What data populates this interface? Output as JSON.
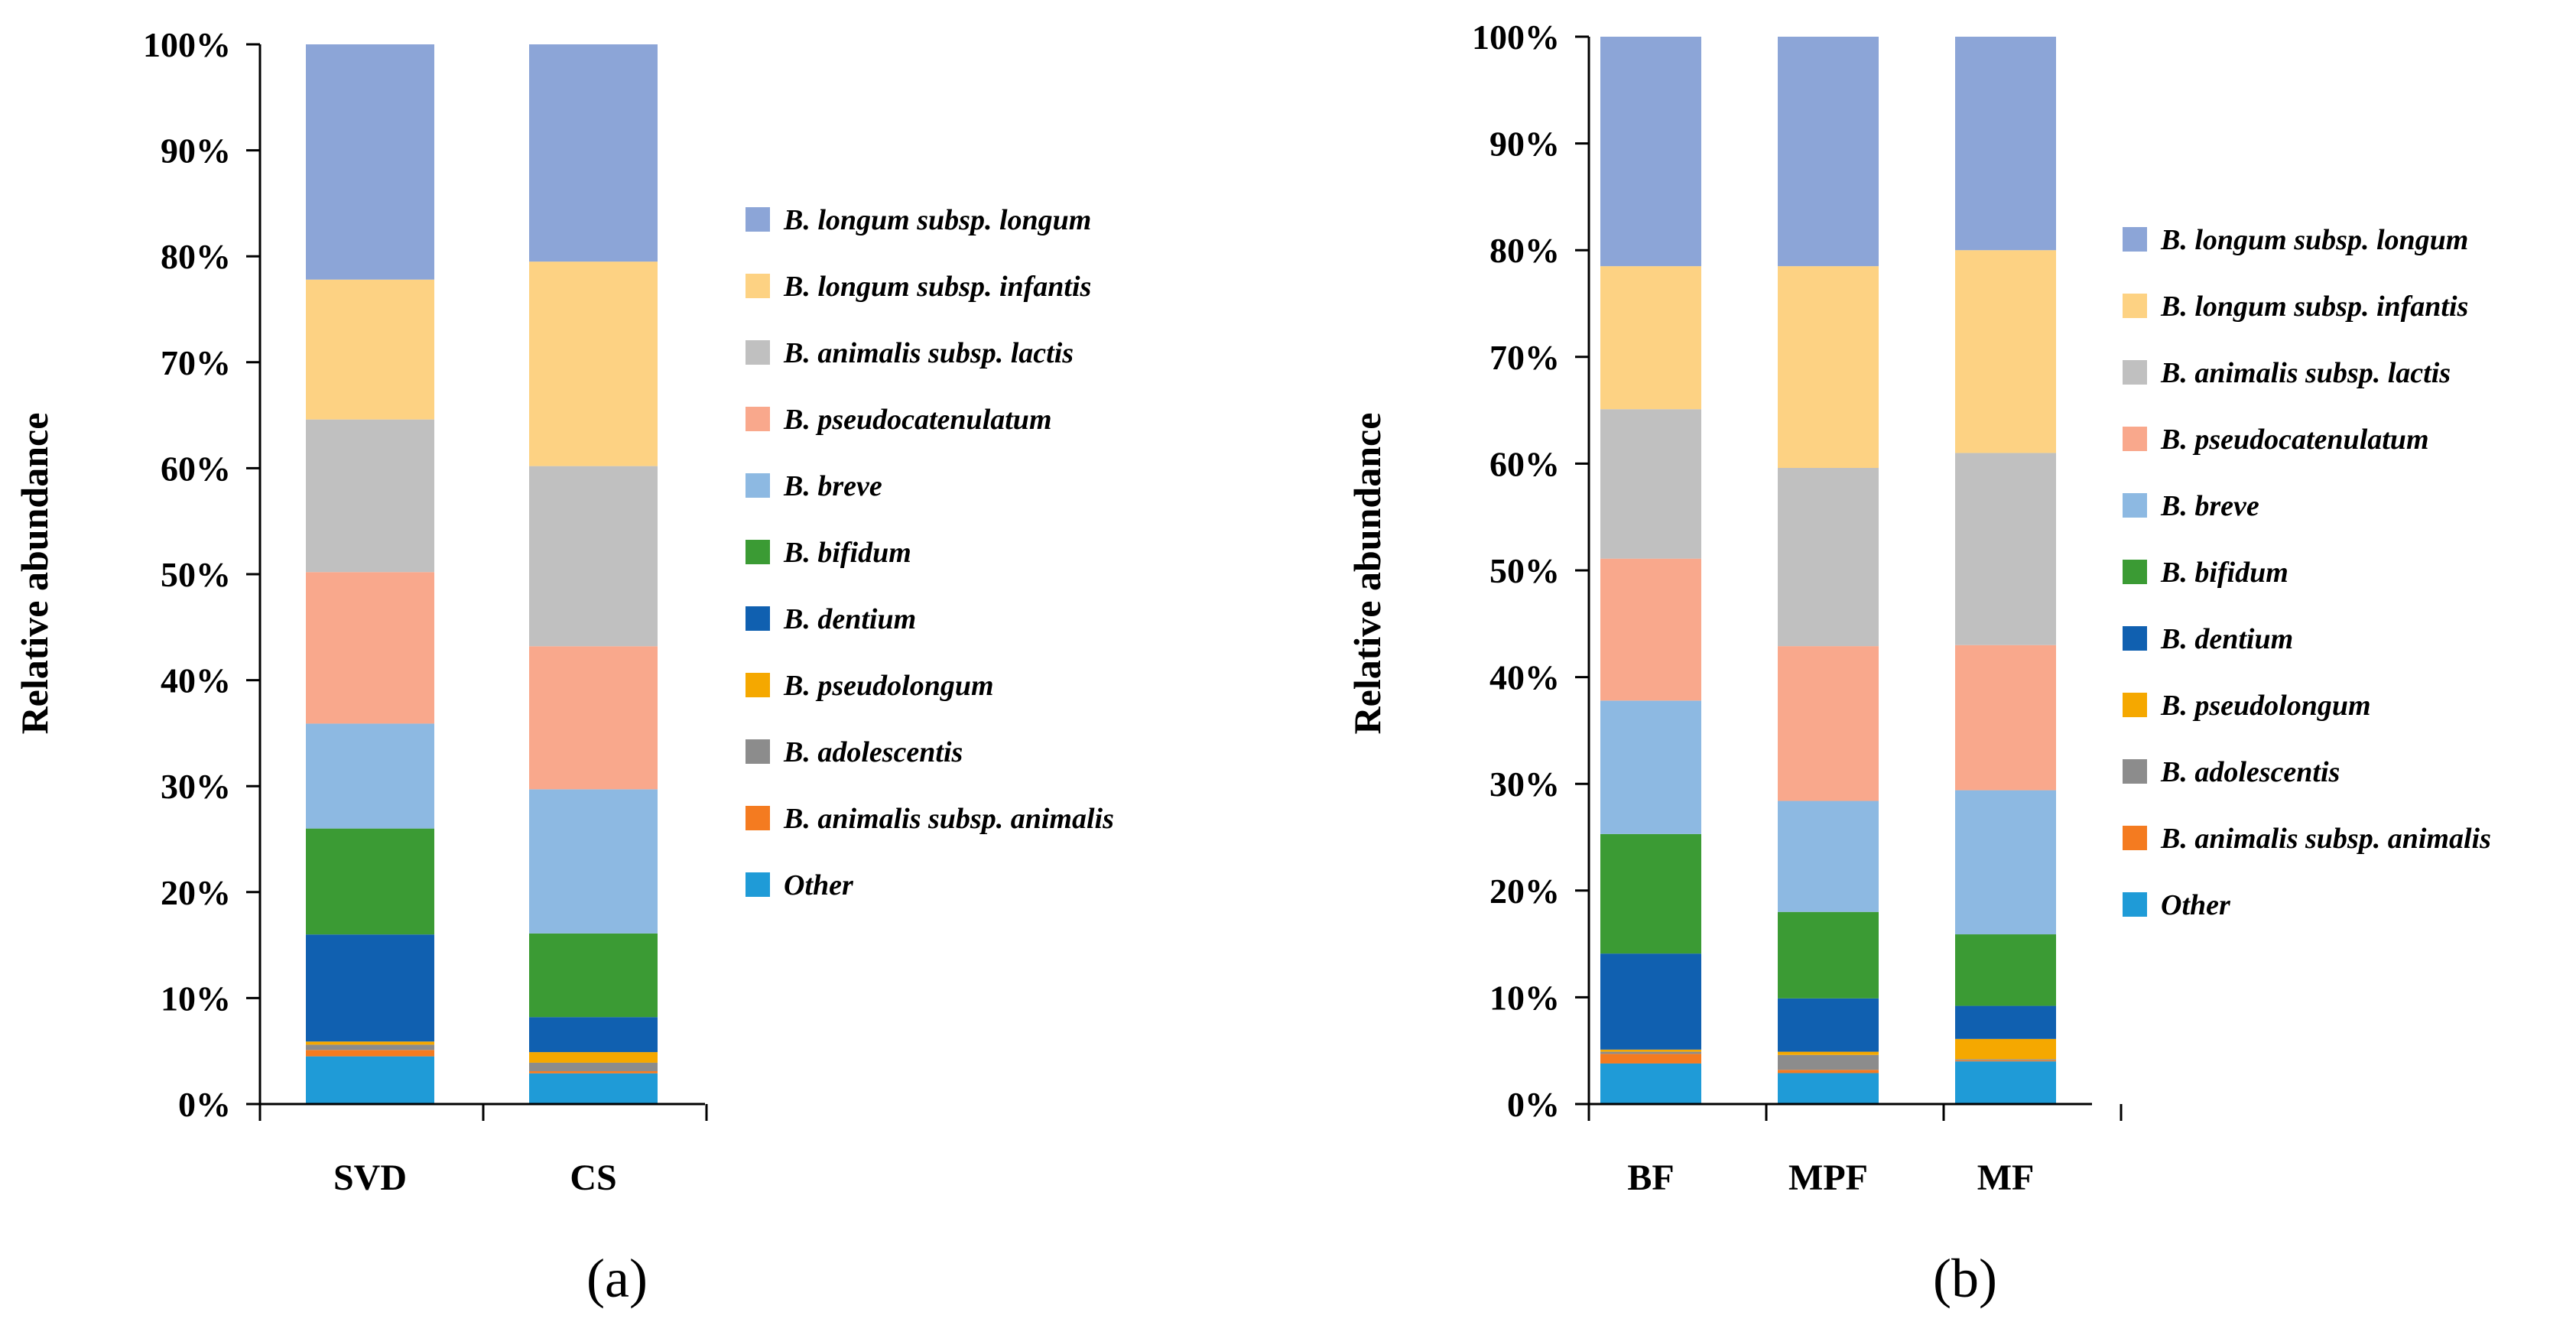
{
  "chart_data": [
    {
      "type": "bar",
      "stacked": true,
      "panel_label": "(a)",
      "ylabel": "Relative abundance",
      "ylim": [
        0,
        100
      ],
      "y_ticks": [
        "0%",
        "10%",
        "20%",
        "30%",
        "40%",
        "50%",
        "60%",
        "70%",
        "80%",
        "90%",
        "100%"
      ],
      "categories": [
        "SVD",
        "CS"
      ],
      "series": [
        {
          "name": "Other",
          "color": "#1f9bd7",
          "values": [
            4.5,
            2.9
          ]
        },
        {
          "name": "B. animalis subsp. animalis",
          "color": "#f47b20",
          "values": [
            0.6,
            0.2
          ]
        },
        {
          "name": "B. adolescentis",
          "color": "#8c8c8c",
          "values": [
            0.5,
            0.8
          ]
        },
        {
          "name": "B. pseudolongum",
          "color": "#f5a800",
          "values": [
            0.3,
            1.0
          ]
        },
        {
          "name": "B. dentium",
          "color": "#1060b0",
          "values": [
            10.1,
            3.3
          ]
        },
        {
          "name": "B. bifidum",
          "color": "#3b9b34",
          "values": [
            10.0,
            7.9
          ]
        },
        {
          "name": "B. breve",
          "color": "#8db9e2",
          "values": [
            9.9,
            13.6
          ]
        },
        {
          "name": "B. pseudocatenulatum",
          "color": "#f9a88c",
          "values": [
            14.3,
            13.5
          ]
        },
        {
          "name": "B. animalis subsp. lactis",
          "color": "#c0c0c0",
          "values": [
            14.4,
            17.0
          ]
        },
        {
          "name": "B. longum subsp. infantis",
          "color": "#fdd283",
          "values": [
            13.2,
            19.3
          ]
        },
        {
          "name": "B. longum subsp. longum",
          "color": "#8ca5d7",
          "values": [
            22.2,
            20.5
          ]
        }
      ]
    },
    {
      "type": "bar",
      "stacked": true,
      "panel_label": "(b)",
      "ylabel": "Relative abundance",
      "ylim": [
        0,
        100
      ],
      "y_ticks": [
        "0%",
        "10%",
        "20%",
        "30%",
        "40%",
        "50%",
        "60%",
        "70%",
        "80%",
        "90%",
        "100%"
      ],
      "categories": [
        "BF",
        "MPF",
        "MF"
      ],
      "series": [
        {
          "name": "Other",
          "color": "#1f9bd7",
          "values": [
            3.8,
            2.9,
            4.0
          ]
        },
        {
          "name": "B. animalis subsp. animalis",
          "color": "#f47b20",
          "values": [
            0.9,
            0.3,
            0.1
          ]
        },
        {
          "name": "B. adolescentis",
          "color": "#8c8c8c",
          "values": [
            0.2,
            1.4,
            0.1
          ]
        },
        {
          "name": "B. pseudolongum",
          "color": "#f5a800",
          "values": [
            0.2,
            0.3,
            1.9
          ]
        },
        {
          "name": "B. dentium",
          "color": "#1060b0",
          "values": [
            9.0,
            5.0,
            3.1
          ]
        },
        {
          "name": "B. bifidum",
          "color": "#3b9b34",
          "values": [
            11.2,
            8.1,
            6.7
          ]
        },
        {
          "name": "B. breve",
          "color": "#8db9e2",
          "values": [
            12.5,
            10.4,
            13.5
          ]
        },
        {
          "name": "B. pseudocatenulatum",
          "color": "#f9a88c",
          "values": [
            13.3,
            14.5,
            13.6
          ]
        },
        {
          "name": "B. animalis subsp. lactis",
          "color": "#c0c0c0",
          "values": [
            14.0,
            16.7,
            18.0
          ]
        },
        {
          "name": "B. longum subsp. infantis",
          "color": "#fdd283",
          "values": [
            13.4,
            18.9,
            19.0
          ]
        },
        {
          "name": "B. longum subsp. longum",
          "color": "#8ca5d7",
          "values": [
            21.5,
            21.5,
            20.0
          ]
        }
      ]
    }
  ]
}
